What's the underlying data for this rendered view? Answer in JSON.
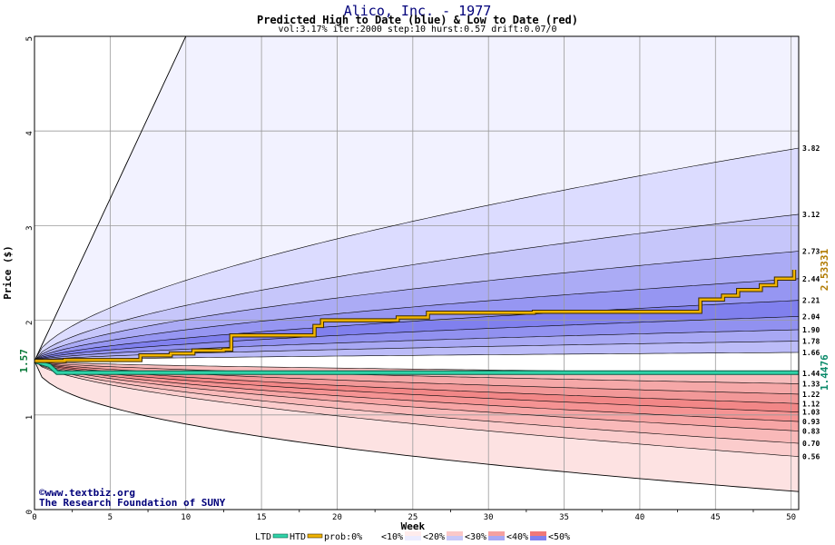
{
  "chart_data": {
    "type": "area",
    "title": "Alico, Inc. - 1977",
    "subtitle": "Predicted High to Date (blue) &  Low to Date (red)",
    "params": "vol:3.17% iter:2000 step:10 hurst:0.57 drift:0.07/0",
    "xlabel": "Week",
    "ylabel": "Price ($)",
    "xlim": [
      0,
      50.5
    ],
    "ylim": [
      0,
      5
    ],
    "x_ticks": [
      "0",
      "5",
      "10",
      "15",
      "20",
      "25",
      "30",
      "35",
      "40",
      "45",
      "50"
    ],
    "y_ticks": [
      "0",
      "1",
      "2",
      "3",
      "4",
      "5"
    ],
    "grid": true,
    "start_price": "1.57",
    "htd_label": "2.53331",
    "htd_value": 2.53331,
    "ltd_label": "1.4476",
    "ltd_value": 1.4476,
    "high_quantiles": [
      "3.82",
      "3.12",
      "2.73",
      "2.44",
      "2.21",
      "2.04",
      "1.90",
      "1.78",
      "1.66"
    ],
    "high_values": [
      3.82,
      3.12,
      2.73,
      2.44,
      2.21,
      2.04,
      1.9,
      1.78,
      1.66
    ],
    "low_quantiles": [
      "1.44",
      "1.33",
      "1.22",
      "1.12",
      "1.03",
      "0.93",
      "0.83",
      "0.70",
      "0.56"
    ],
    "low_values": [
      1.44,
      1.33,
      1.22,
      1.12,
      1.03,
      0.93,
      0.83,
      0.7,
      0.56
    ],
    "htd_series": {
      "x": [
        0,
        1,
        2,
        6.5,
        7,
        9,
        10.5,
        12.5,
        13,
        18.5,
        19,
        24,
        26,
        33,
        43.5,
        44,
        45.5,
        46.5,
        48,
        49,
        50.2
      ],
      "y": [
        1.57,
        1.57,
        1.58,
        1.58,
        1.63,
        1.65,
        1.68,
        1.69,
        1.84,
        1.94,
        2.0,
        2.03,
        2.08,
        2.09,
        2.09,
        2.22,
        2.26,
        2.32,
        2.37,
        2.44,
        2.53331
      ]
    },
    "ltd_series": {
      "x": [
        0,
        1,
        1.5,
        50.5
      ],
      "y": [
        1.57,
        1.52,
        1.4476,
        1.4476
      ]
    },
    "credit1": "©www.textbiz.org",
    "credit2": "The Research Foundation of SUNY",
    "legend": {
      "ltd": "LTD",
      "htd": "HTD",
      "prob": "prob:0%",
      "b10": "<10%",
      "b20": "<20%",
      "b30": "<30%",
      "b40": "<40%",
      "b50": "<50%"
    },
    "colors": {
      "ltd": "#2fd3a8",
      "htd": "#f0b400",
      "blue_bands": [
        "#f2f2ff",
        "#dcdcff",
        "#c6c6fa",
        "#ababf5",
        "#9696f2",
        "#8080ee",
        "#9191f0",
        "#a8a8f4",
        "#bcbcf8"
      ],
      "red_bands": [
        "#f7bdbd",
        "#f5a8a8",
        "#f29898",
        "#f28787",
        "#f59393",
        "#f7a5a5",
        "#f9b9b9",
        "#fbcccc",
        "#fde2e2"
      ]
    }
  }
}
